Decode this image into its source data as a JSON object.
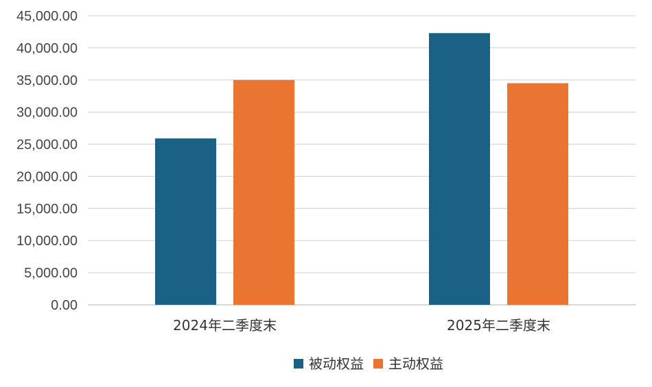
{
  "chart_data": {
    "type": "bar",
    "categories": [
      "2024年二季度末",
      "2025年二季度末"
    ],
    "series": [
      {
        "name": "被动权益",
        "values": [
          25900,
          42300
        ],
        "color": "#1a6185"
      },
      {
        "name": "主动权益",
        "values": [
          35000,
          34500
        ],
        "color": "#ea7533"
      }
    ],
    "ylim": [
      0,
      45000
    ],
    "yticks": [
      0,
      5000,
      10000,
      15000,
      20000,
      25000,
      30000,
      35000,
      40000,
      45000
    ],
    "ytick_labels": [
      "0.00",
      "5,000.00",
      "10,000.00",
      "15,000.00",
      "20,000.00",
      "25,000.00",
      "30,000.00",
      "35,000.00",
      "40,000.00",
      "45,000.00"
    ],
    "title": "",
    "xlabel": "",
    "ylabel": "",
    "grid": true,
    "legend_position": "bottom-center"
  }
}
